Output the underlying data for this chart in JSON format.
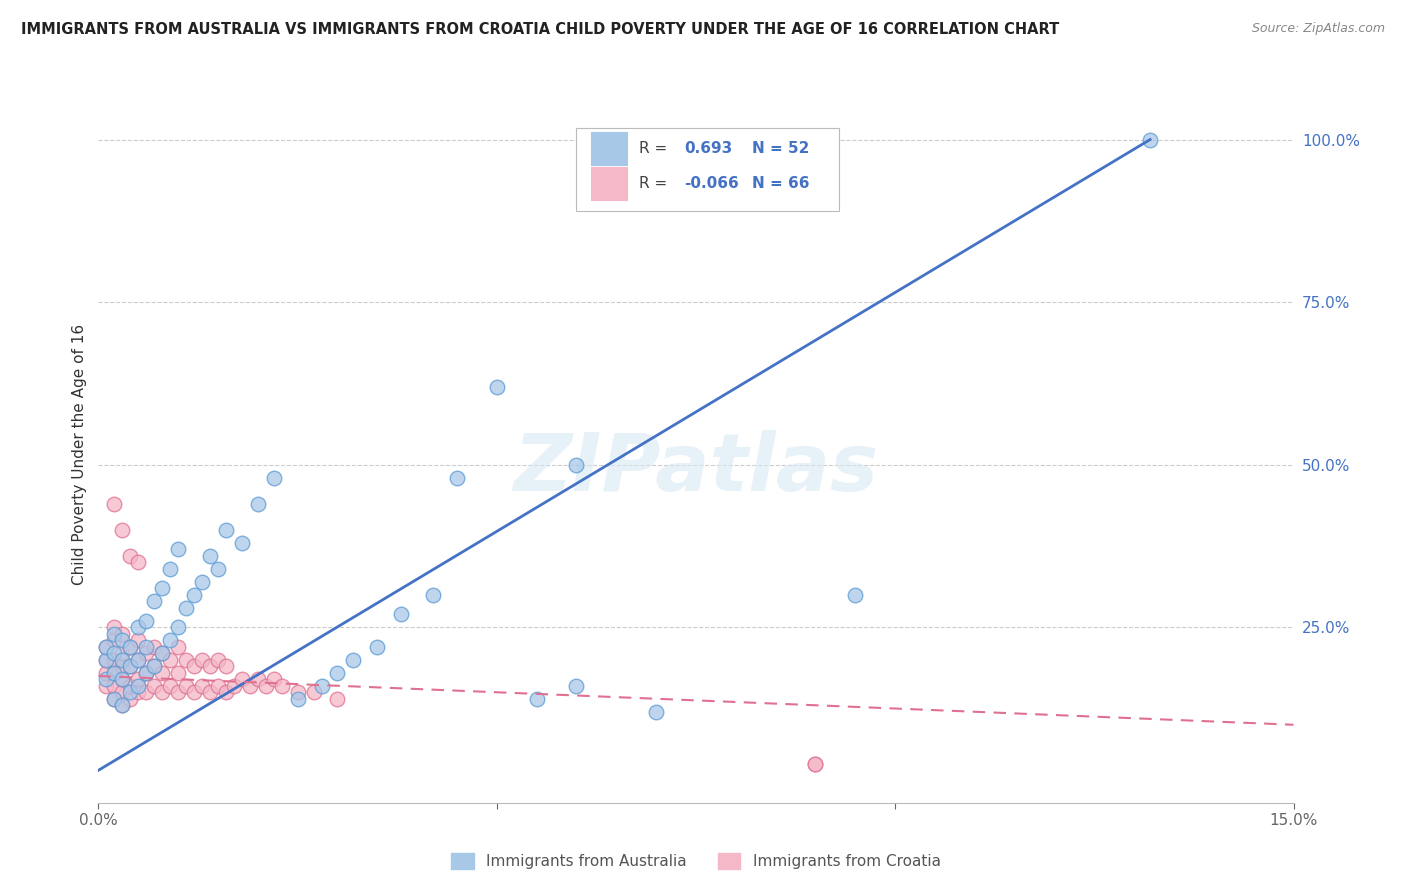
{
  "title": "IMMIGRANTS FROM AUSTRALIA VS IMMIGRANTS FROM CROATIA CHILD POVERTY UNDER THE AGE OF 16 CORRELATION CHART",
  "source": "Source: ZipAtlas.com",
  "ylabel": "Child Poverty Under the Age of 16",
  "xlim": [
    0.0,
    0.15
  ],
  "ylim": [
    -0.02,
    1.05
  ],
  "australia_color": "#a8c8e8",
  "australia_edge": "#5b9bd5",
  "croatia_color": "#f4b8c8",
  "croatia_edge": "#e07090",
  "trend_australia_color": "#4472c4",
  "trend_croatia_color": "#e07090",
  "watermark": "ZIPatlas",
  "aus_R": 0.693,
  "aus_N": 52,
  "cro_R": -0.066,
  "cro_N": 66,
  "aus_x": [
    0.001,
    0.001,
    0.001,
    0.002,
    0.002,
    0.002,
    0.002,
    0.003,
    0.003,
    0.003,
    0.003,
    0.004,
    0.004,
    0.004,
    0.005,
    0.005,
    0.005,
    0.006,
    0.006,
    0.006,
    0.007,
    0.007,
    0.008,
    0.008,
    0.009,
    0.009,
    0.01,
    0.01,
    0.011,
    0.012,
    0.013,
    0.014,
    0.015,
    0.016,
    0.018,
    0.02,
    0.022,
    0.025,
    0.028,
    0.03,
    0.032,
    0.035,
    0.038,
    0.042,
    0.045,
    0.05,
    0.055,
    0.06,
    0.07,
    0.095,
    0.06,
    0.132
  ],
  "aus_y": [
    0.17,
    0.2,
    0.22,
    0.14,
    0.18,
    0.21,
    0.24,
    0.13,
    0.17,
    0.2,
    0.23,
    0.15,
    0.19,
    0.22,
    0.16,
    0.2,
    0.25,
    0.18,
    0.22,
    0.26,
    0.19,
    0.29,
    0.21,
    0.31,
    0.23,
    0.34,
    0.25,
    0.37,
    0.28,
    0.3,
    0.32,
    0.36,
    0.34,
    0.4,
    0.38,
    0.44,
    0.48,
    0.14,
    0.16,
    0.18,
    0.2,
    0.22,
    0.27,
    0.3,
    0.48,
    0.62,
    0.14,
    0.16,
    0.12,
    0.3,
    0.5,
    1.0
  ],
  "cro_x": [
    0.001,
    0.001,
    0.001,
    0.001,
    0.002,
    0.002,
    0.002,
    0.002,
    0.002,
    0.002,
    0.003,
    0.003,
    0.003,
    0.003,
    0.003,
    0.003,
    0.004,
    0.004,
    0.004,
    0.004,
    0.005,
    0.005,
    0.005,
    0.005,
    0.006,
    0.006,
    0.006,
    0.007,
    0.007,
    0.007,
    0.008,
    0.008,
    0.008,
    0.009,
    0.009,
    0.01,
    0.01,
    0.01,
    0.011,
    0.011,
    0.012,
    0.012,
    0.013,
    0.013,
    0.014,
    0.014,
    0.015,
    0.015,
    0.016,
    0.016,
    0.017,
    0.018,
    0.019,
    0.02,
    0.021,
    0.022,
    0.023,
    0.025,
    0.027,
    0.03,
    0.002,
    0.003,
    0.004,
    0.005,
    0.09,
    0.09
  ],
  "cro_y": [
    0.16,
    0.18,
    0.2,
    0.22,
    0.14,
    0.16,
    0.18,
    0.2,
    0.23,
    0.25,
    0.13,
    0.15,
    0.17,
    0.19,
    0.21,
    0.24,
    0.14,
    0.16,
    0.19,
    0.22,
    0.15,
    0.17,
    0.2,
    0.23,
    0.15,
    0.18,
    0.21,
    0.16,
    0.19,
    0.22,
    0.15,
    0.18,
    0.21,
    0.16,
    0.2,
    0.15,
    0.18,
    0.22,
    0.16,
    0.2,
    0.15,
    0.19,
    0.16,
    0.2,
    0.15,
    0.19,
    0.16,
    0.2,
    0.15,
    0.19,
    0.16,
    0.17,
    0.16,
    0.17,
    0.16,
    0.17,
    0.16,
    0.15,
    0.15,
    0.14,
    0.44,
    0.4,
    0.36,
    0.35,
    0.04,
    0.04
  ],
  "aus_trend_x": [
    0.0,
    0.132
  ],
  "aus_trend_y": [
    0.03,
    1.0
  ],
  "cro_trend_x": [
    0.0,
    0.15
  ],
  "cro_trend_y": [
    0.175,
    0.1
  ]
}
